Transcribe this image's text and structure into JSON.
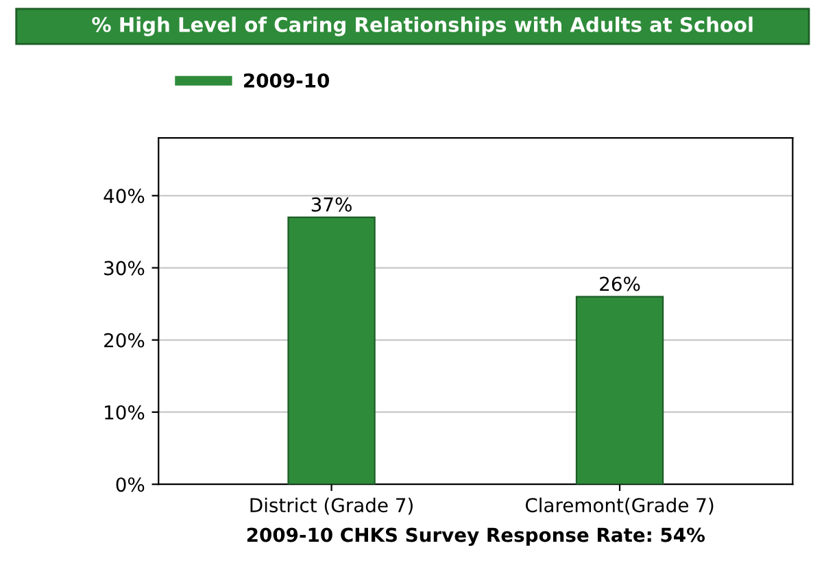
{
  "chart_data": {
    "type": "bar",
    "title": "% High Level of Caring Relationships with Adults at School",
    "xlabel": "2009-10 CHKS Survey Response Rate: 54%",
    "categories": [
      "District (Grade 7)",
      "Claremont(Grade 7)"
    ],
    "series": [
      {
        "name": "2009-10",
        "color": "#2e8b3a",
        "values": [
          37,
          26
        ],
        "value_labels": [
          "37%",
          "26%"
        ]
      }
    ],
    "ylim": [
      0,
      48
    ],
    "yticks": [
      {
        "value": 0,
        "label": "0%"
      },
      {
        "value": 10,
        "label": "10%"
      },
      {
        "value": 20,
        "label": "20%"
      },
      {
        "value": 30,
        "label": "30%"
      },
      {
        "value": 40,
        "label": "40%"
      }
    ],
    "grid": "y",
    "legend": "top left"
  }
}
